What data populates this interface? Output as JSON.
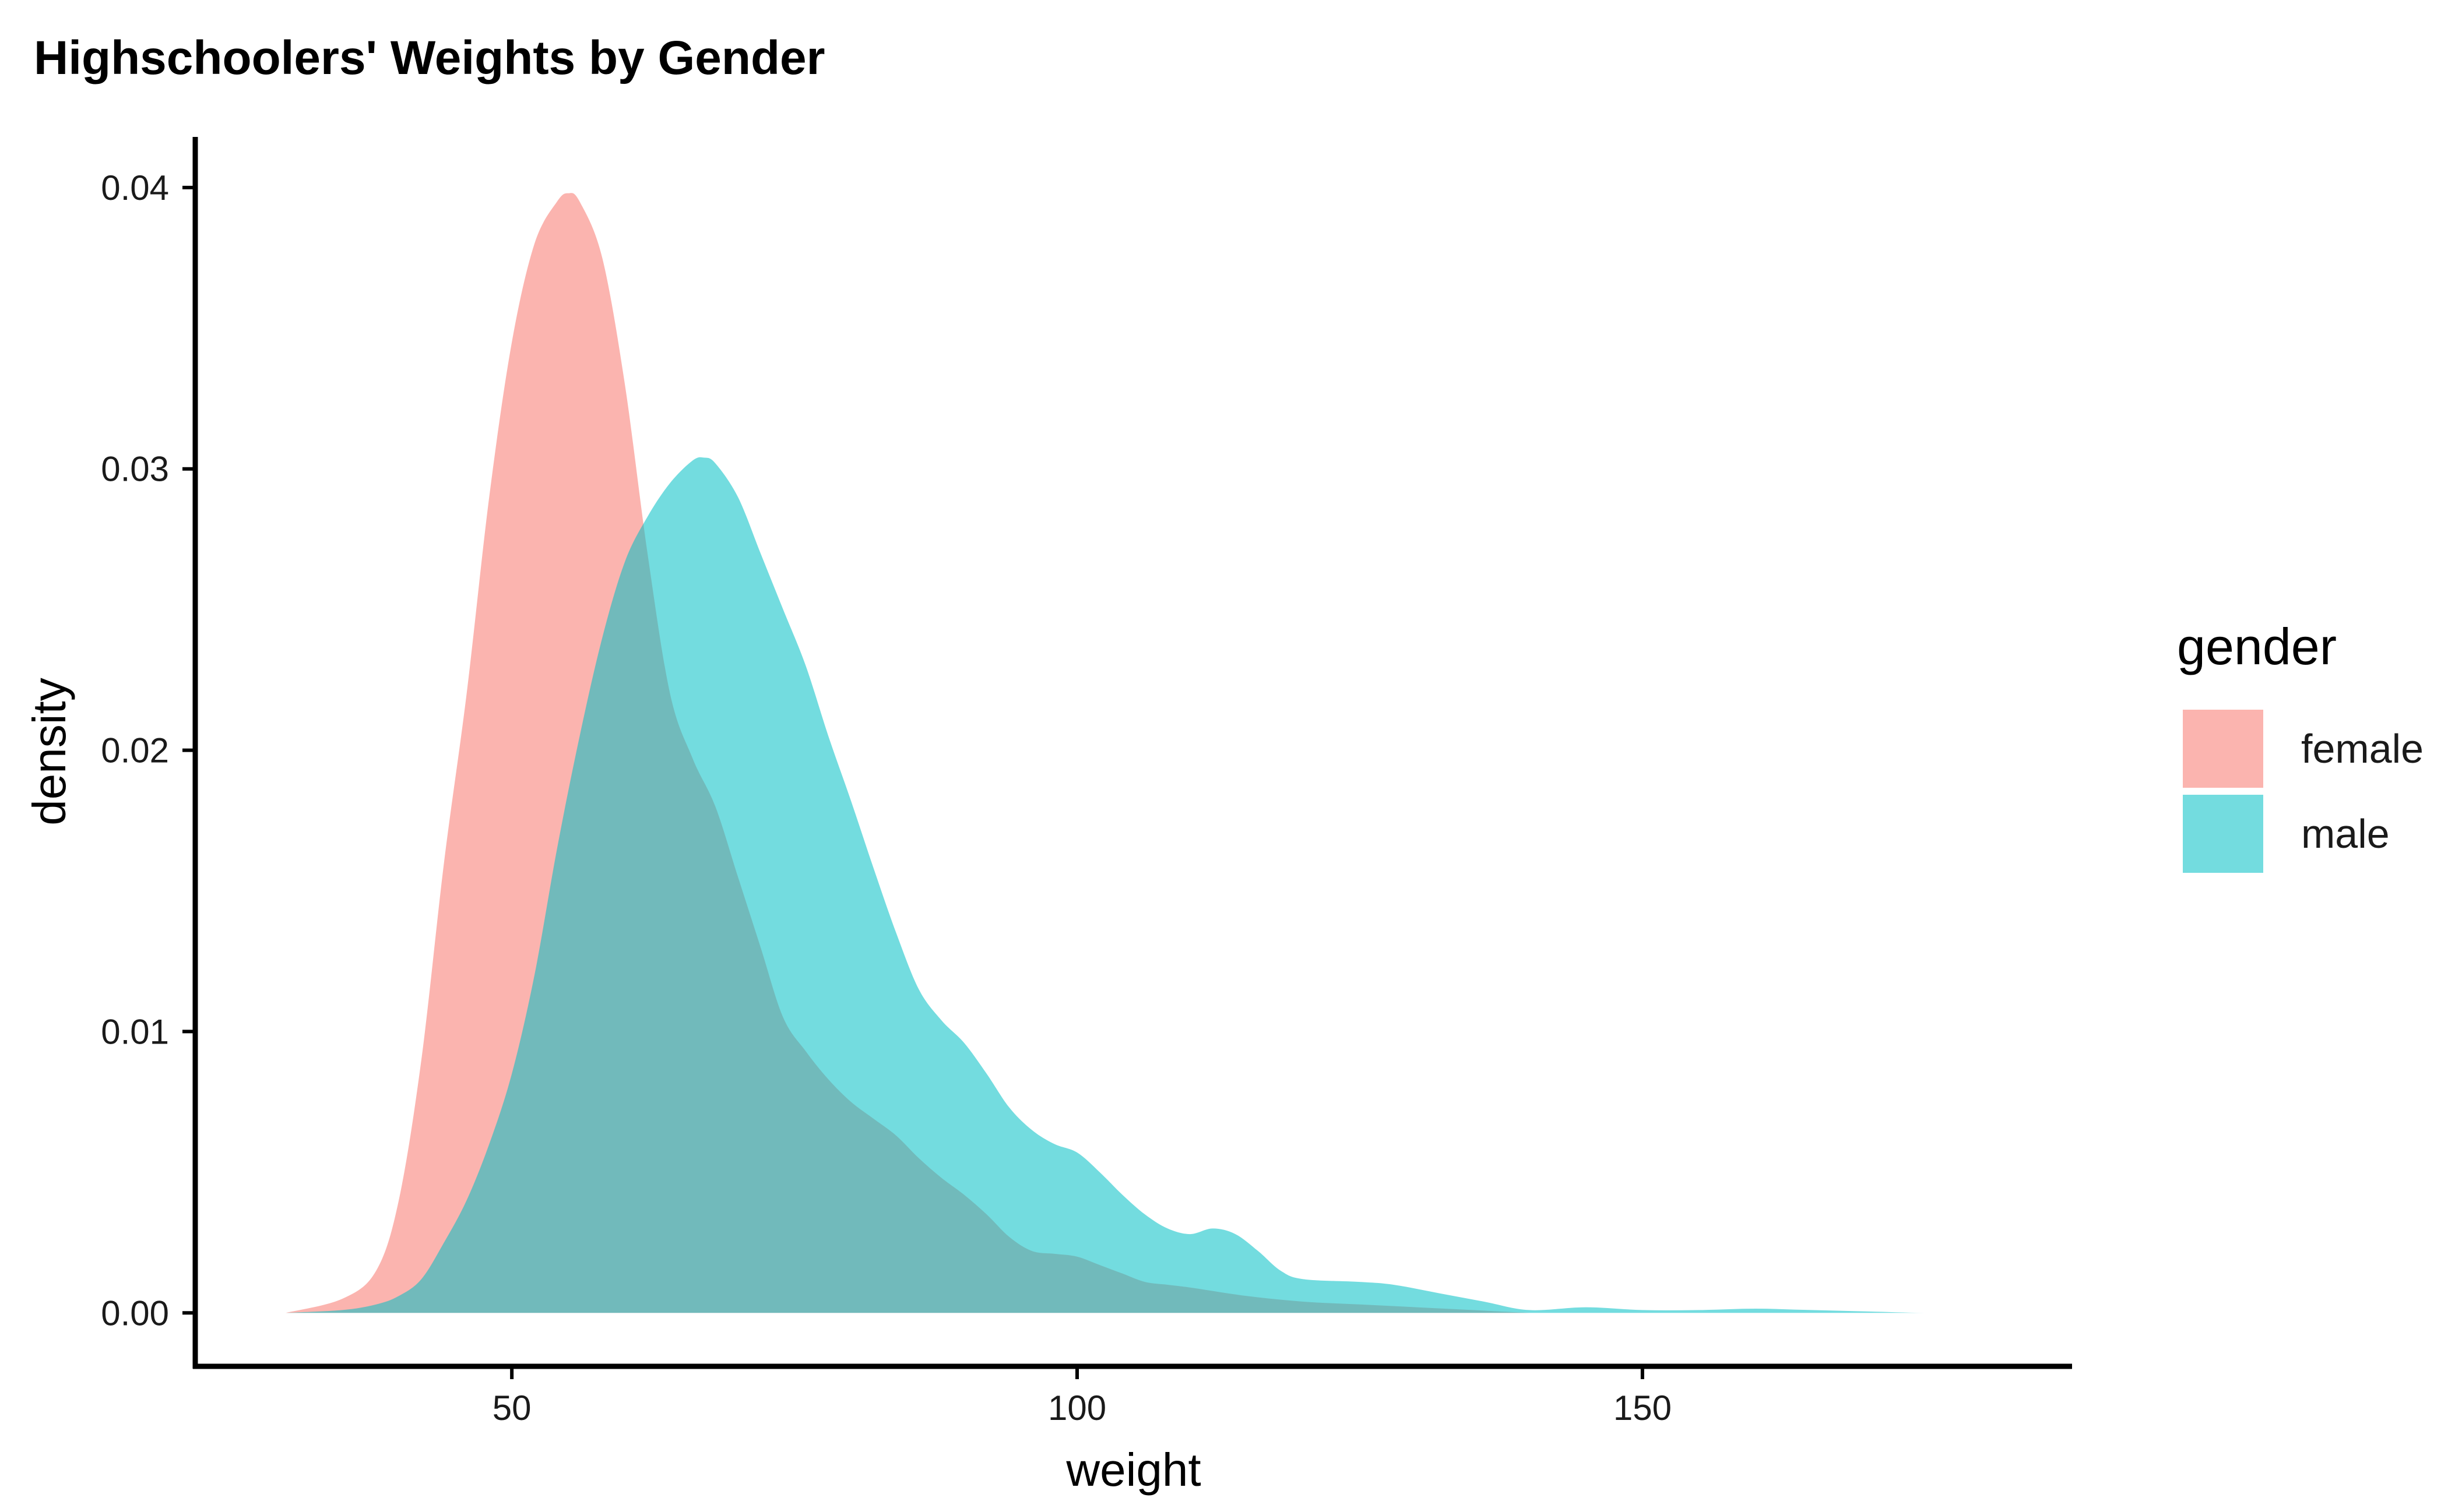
{
  "chart_data": {
    "type": "area",
    "title": "Highschoolers' Weights by Gender",
    "xlabel": "weight",
    "ylabel": "density",
    "xlim": [
      22,
      188
    ],
    "ylim": [
      -0.0019,
      0.0418
    ],
    "x_ticks": [
      50,
      100,
      150
    ],
    "x_tick_labels": [
      "50",
      "100",
      "150"
    ],
    "y_ticks": [
      0.0,
      0.01,
      0.02,
      0.03,
      0.04
    ],
    "y_tick_labels": [
      "0.00",
      "0.01",
      "0.02",
      "0.03",
      "0.04"
    ],
    "grid": false,
    "legend": {
      "title": "gender",
      "position": "right"
    },
    "series": [
      {
        "name": "female",
        "color": "#F8766D",
        "x": [
          30,
          35,
          38,
          40,
          42,
          44,
          46,
          48,
          50,
          52,
          54,
          55,
          56,
          58,
          60,
          62,
          64,
          66,
          68,
          70,
          72,
          74,
          76,
          78,
          80,
          82,
          84,
          86,
          88,
          90,
          92,
          94,
          96,
          98,
          100,
          102,
          104,
          106,
          108,
          110,
          115,
          120,
          125,
          130,
          135,
          140
        ],
        "values": [
          0.0,
          0.0005,
          0.0015,
          0.004,
          0.009,
          0.016,
          0.022,
          0.029,
          0.0345,
          0.038,
          0.0395,
          0.0398,
          0.0395,
          0.0375,
          0.033,
          0.027,
          0.022,
          0.0197,
          0.018,
          0.0155,
          0.013,
          0.0105,
          0.0093,
          0.0083,
          0.0075,
          0.0069,
          0.0063,
          0.0055,
          0.0048,
          0.0042,
          0.0035,
          0.0027,
          0.0022,
          0.0021,
          0.002,
          0.0017,
          0.0014,
          0.0011,
          0.001,
          0.0009,
          0.0006,
          0.0004,
          0.0003,
          0.0002,
          0.0001,
          0.0
        ]
      },
      {
        "name": "male",
        "color": "#00BFC4",
        "x": [
          30,
          35,
          38,
          40,
          42,
          44,
          46,
          48,
          50,
          52,
          54,
          56,
          58,
          60,
          62,
          64,
          66,
          67,
          68,
          70,
          72,
          74,
          76,
          78,
          80,
          82,
          84,
          86,
          88,
          90,
          92,
          94,
          96,
          98,
          100,
          102,
          104,
          106,
          108,
          110,
          112,
          114,
          116,
          118,
          120,
          125,
          128,
          132,
          136,
          140,
          145,
          150,
          155,
          160,
          165,
          170,
          175,
          181
        ],
        "values": [
          0.0,
          0.0001,
          0.0003,
          0.0006,
          0.0012,
          0.0025,
          0.004,
          0.006,
          0.0085,
          0.012,
          0.0165,
          0.0205,
          0.024,
          0.0267,
          0.0283,
          0.0295,
          0.0303,
          0.0304,
          0.0302,
          0.029,
          0.027,
          0.025,
          0.023,
          0.0205,
          0.0182,
          0.0158,
          0.0135,
          0.0115,
          0.0104,
          0.0096,
          0.0085,
          0.0073,
          0.0065,
          0.006,
          0.0057,
          0.005,
          0.0042,
          0.0035,
          0.003,
          0.0028,
          0.003,
          0.0028,
          0.0022,
          0.0015,
          0.0012,
          0.0011,
          0.001,
          0.0007,
          0.0004,
          0.0001,
          0.0002,
          0.0001,
          0.0001,
          0.00015,
          0.0001,
          5e-05,
          0.0,
          0.0
        ]
      }
    ]
  }
}
